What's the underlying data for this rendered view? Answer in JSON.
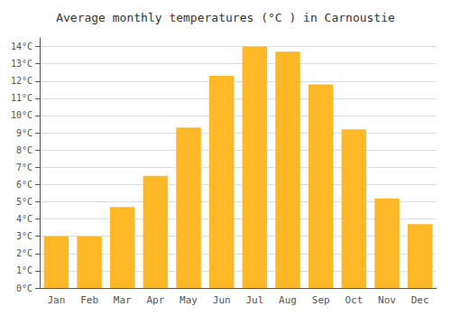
{
  "chart_data": {
    "type": "bar",
    "title": "Average monthly temperatures (°C ) in Carnoustie",
    "categories": [
      "Jan",
      "Feb",
      "Mar",
      "Apr",
      "May",
      "Jun",
      "Jul",
      "Aug",
      "Sep",
      "Oct",
      "Nov",
      "Dec"
    ],
    "values": [
      3.0,
      3.0,
      4.7,
      6.5,
      9.3,
      12.3,
      14.0,
      13.7,
      11.8,
      9.2,
      5.2,
      3.7
    ],
    "color": "#FDB827",
    "ylim": [
      0,
      14.5
    ],
    "yticks": [
      {
        "value": 0,
        "label": "0°C"
      },
      {
        "value": 1,
        "label": "1°C"
      },
      {
        "value": 2,
        "label": "2°C"
      },
      {
        "value": 3,
        "label": "3°C"
      },
      {
        "value": 4,
        "label": "4°C"
      },
      {
        "value": 5,
        "label": "5°C"
      },
      {
        "value": 6,
        "label": "6°C"
      },
      {
        "value": 7,
        "label": "7°C"
      },
      {
        "value": 8,
        "label": "8°C"
      },
      {
        "value": 9,
        "label": "9°C"
      },
      {
        "value": 10,
        "label": "10°C"
      },
      {
        "value": 11,
        "label": "11°C"
      },
      {
        "value": 12,
        "label": "12°C"
      },
      {
        "value": 13,
        "label": "13°C"
      },
      {
        "value": 14,
        "label": "14°C"
      }
    ],
    "grid": true
  }
}
